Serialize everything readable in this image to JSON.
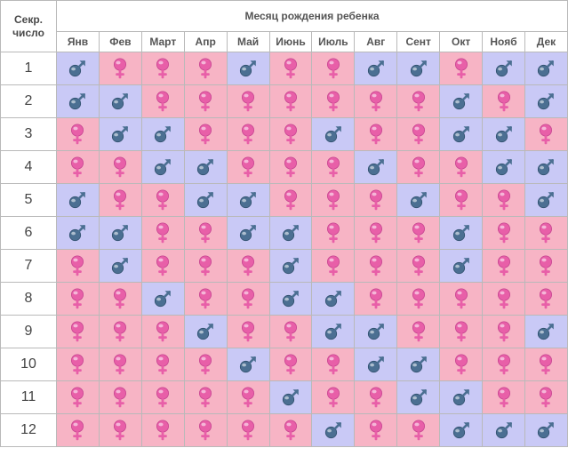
{
  "header": {
    "corner_label": "Секр.\nчисло",
    "title": "Месяц рождения ребенка",
    "months": [
      "Янв",
      "Фев",
      "Март",
      "Апр",
      "Май",
      "Июнь",
      "Июль",
      "Авг",
      "Сент",
      "Окт",
      "Нояб",
      "Дек"
    ]
  },
  "legend_colors": {
    "boy": "#c9c9f6",
    "girl": "#f7b4c5",
    "boy_symbol": "#4b6f92",
    "girl_symbol": "#e85fa8"
  },
  "rows": [
    {
      "number": "1",
      "cells": [
        "boy",
        "girl",
        "girl",
        "girl",
        "boy",
        "girl",
        "girl",
        "boy",
        "boy",
        "girl",
        "boy",
        "boy"
      ]
    },
    {
      "number": "2",
      "cells": [
        "boy",
        "boy",
        "girl",
        "girl",
        "girl",
        "girl",
        "girl",
        "girl",
        "girl",
        "boy",
        "girl",
        "boy"
      ]
    },
    {
      "number": "3",
      "cells": [
        "girl",
        "boy",
        "boy",
        "girl",
        "girl",
        "girl",
        "boy",
        "girl",
        "girl",
        "boy",
        "boy",
        "girl"
      ]
    },
    {
      "number": "4",
      "cells": [
        "girl",
        "girl",
        "boy",
        "boy",
        "girl",
        "girl",
        "girl",
        "boy",
        "girl",
        "girl",
        "boy",
        "boy"
      ]
    },
    {
      "number": "5",
      "cells": [
        "boy",
        "girl",
        "girl",
        "boy",
        "boy",
        "girl",
        "girl",
        "girl",
        "boy",
        "girl",
        "girl",
        "boy"
      ]
    },
    {
      "number": "6",
      "cells": [
        "boy",
        "boy",
        "girl",
        "girl",
        "boy",
        "boy",
        "girl",
        "girl",
        "girl",
        "boy",
        "girl",
        "girl"
      ]
    },
    {
      "number": "7",
      "cells": [
        "girl",
        "boy",
        "girl",
        "girl",
        "girl",
        "boy",
        "girl",
        "girl",
        "girl",
        "boy",
        "girl",
        "girl"
      ]
    },
    {
      "number": "8",
      "cells": [
        "girl",
        "girl",
        "boy",
        "girl",
        "girl",
        "boy",
        "boy",
        "girl",
        "girl",
        "girl",
        "girl",
        "girl"
      ]
    },
    {
      "number": "9",
      "cells": [
        "girl",
        "girl",
        "girl",
        "boy",
        "girl",
        "girl",
        "boy",
        "boy",
        "girl",
        "girl",
        "girl",
        "boy"
      ]
    },
    {
      "number": "10",
      "cells": [
        "girl",
        "girl",
        "girl",
        "girl",
        "boy",
        "girl",
        "girl",
        "boy",
        "boy",
        "girl",
        "girl",
        "girl"
      ]
    },
    {
      "number": "11",
      "cells": [
        "girl",
        "girl",
        "girl",
        "girl",
        "girl",
        "boy",
        "girl",
        "girl",
        "boy",
        "boy",
        "girl",
        "girl"
      ]
    },
    {
      "number": "12",
      "cells": [
        "girl",
        "girl",
        "girl",
        "girl",
        "girl",
        "girl",
        "boy",
        "girl",
        "girl",
        "boy",
        "boy",
        "boy"
      ]
    }
  ]
}
